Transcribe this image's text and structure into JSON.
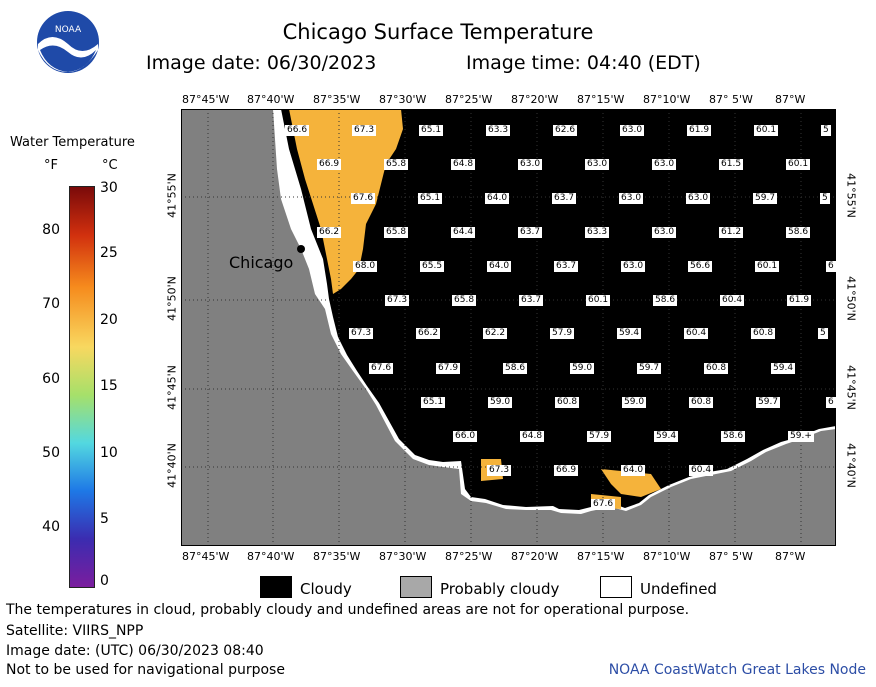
{
  "header": {
    "title": "Chicago Surface Temperature",
    "date_line": "Image date: 06/30/2023",
    "time_line": "Image time: 04:40 (EDT)"
  },
  "colorbar": {
    "title": "Water Temperature",
    "unit_f": "°F",
    "unit_c": "°C",
    "f_ticks": [
      "80",
      "70",
      "60",
      "50",
      "40"
    ],
    "c_ticks": [
      "30",
      "25",
      "20",
      "15",
      "10",
      "5",
      "0"
    ],
    "colors": [
      "#7a0a0a",
      "#d1300e",
      "#f68b1d",
      "#f8d860",
      "#a6e06a",
      "#53d8e0",
      "#1e78e6",
      "#3b2cb0",
      "#7b1d9e"
    ]
  },
  "map": {
    "lon_labels": [
      "87°45'W",
      "87°40'W",
      "87°35'W",
      "87°30'W",
      "87°25'W",
      "87°20'W",
      "87°15'W",
      "87°10'W",
      "87° 5'W",
      "87°W"
    ],
    "lat_labels": [
      "41°55'N",
      "41°50'N",
      "41°45'N",
      "41°40'N"
    ],
    "city": "Chicago",
    "temperatures": [
      [
        "66.6",
        "67.3",
        "65.1",
        "63.3",
        "62.6",
        "63.0",
        "61.9",
        "60.1",
        "5"
      ],
      [
        "66.9",
        "65.8",
        "64.8",
        "63.0",
        "63.0",
        "63.0",
        "61.5",
        "60.1"
      ],
      [
        "67.6",
        "65.1",
        "64.0",
        "63.7",
        "63.0",
        "63.0",
        "59.7",
        "5"
      ],
      [
        "66.2",
        "65.8",
        "64.4",
        "63.7",
        "63.3",
        "63.0",
        "61.2",
        "58.6"
      ],
      [
        "68.0",
        "65.5",
        "64.0",
        "63.7",
        "63.0",
        "56.6",
        "60.1",
        "6"
      ],
      [
        "67.3",
        "65.8",
        "63.7",
        "60.1",
        "58.6",
        "60.4",
        "61.9"
      ],
      [
        "67.3",
        "66.2",
        "62.2",
        "57.9",
        "59.4",
        "60.4",
        "60.8",
        "5"
      ],
      [
        "67.6",
        "67.9",
        "58.6",
        "59.0",
        "59.7",
        "60.8",
        "59.4"
      ],
      [
        "65.1",
        "59.0",
        "60.8",
        "59.0",
        "60.8",
        "59.7",
        "6"
      ],
      [
        "66.0",
        "64.8",
        "57.9",
        "59.4",
        "58.6",
        "59.+"
      ],
      [
        "67.3",
        "66.9",
        "64.0",
        "60.4"
      ],
      [
        "67.6"
      ]
    ]
  },
  "legend": {
    "cloudy": "Cloudy",
    "probably_cloudy": "Probably cloudy",
    "undefined": "Undefined"
  },
  "footer": {
    "line1": "The temperatures in cloud, probably cloudy and undefined areas are not for operational purpose.",
    "line2": "Satellite: VIIRS_NPP",
    "line3": "Image date: (UTC) 06/30/2023  08:40",
    "line4": "Not to be used for navigational purpose",
    "credit": "NOAA CoastWatch Great Lakes Node"
  },
  "logo": {
    "text": "NOAA"
  }
}
